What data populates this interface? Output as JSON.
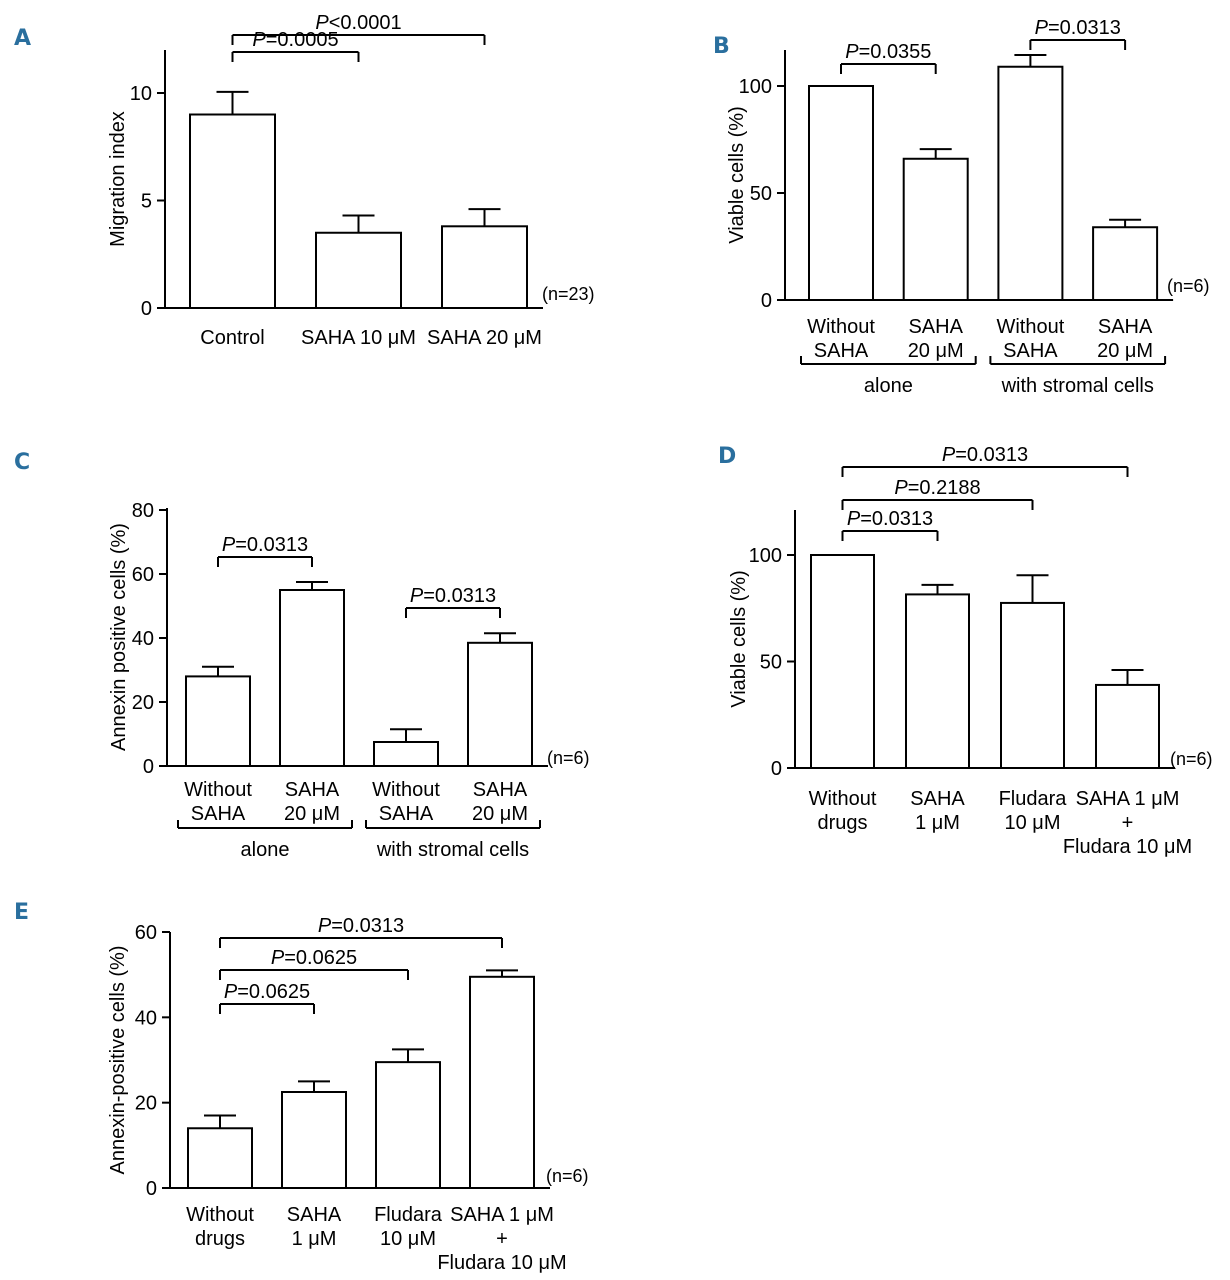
{
  "colors": {
    "panel_letter": "#2a6f9e",
    "ink": "#000000",
    "bar_fill": "#ffffff"
  },
  "chart_data": [
    {
      "id": "A",
      "type": "bar",
      "letter": "A",
      "ylabel": "Migration index",
      "ylim": [
        0,
        12
      ],
      "ticks": [
        0,
        5,
        10
      ],
      "categories": [
        [
          "Control"
        ],
        [
          "SAHA 10 μM"
        ],
        [
          "SAHA 20 μM"
        ]
      ],
      "values": [
        9.0,
        3.5,
        3.8
      ],
      "errors": [
        1.05,
        0.8,
        0.8
      ],
      "n_label": "(n=23)",
      "groups": [],
      "comparisons": [
        {
          "from": 0,
          "to": 1,
          "prefix": "P",
          "text": "=0.0005"
        },
        {
          "from": 0,
          "to": 2,
          "prefix": "P",
          "text": "<0.0001"
        }
      ]
    },
    {
      "id": "B",
      "type": "bar",
      "letter": "B",
      "ylabel": "Viable cells (%)",
      "ylim": [
        0,
        120
      ],
      "ticks": [
        0,
        50,
        100
      ],
      "categories": [
        [
          "Without",
          "SAHA"
        ],
        [
          "SAHA",
          "20 μM"
        ],
        [
          "Without",
          "SAHA"
        ],
        [
          "SAHA",
          "20 μM"
        ]
      ],
      "values": [
        100,
        66,
        109,
        34
      ],
      "errors": [
        0,
        4.5,
        5.5,
        3.5
      ],
      "n_label": "(n=6)",
      "groups": [
        {
          "from": 0,
          "to": 1,
          "label": "alone"
        },
        {
          "from": 2,
          "to": 3,
          "label": "with stromal cells"
        }
      ],
      "comparisons": [
        {
          "from": 0,
          "to": 1,
          "prefix": "P",
          "text": "=0.0355"
        },
        {
          "from": 2,
          "to": 3,
          "prefix": "P",
          "text": "=0.0313"
        }
      ]
    },
    {
      "id": "C",
      "type": "bar",
      "letter": "C",
      "ylabel": "Annexin positive cells (%)",
      "ylim": [
        0,
        80
      ],
      "ticks": [
        0,
        20,
        40,
        60,
        80
      ],
      "categories": [
        [
          "Without",
          "SAHA"
        ],
        [
          "SAHA",
          "20 μM"
        ],
        [
          "Without",
          "SAHA"
        ],
        [
          "SAHA",
          "20 μM"
        ]
      ],
      "values": [
        28,
        55,
        7.5,
        38.5
      ],
      "errors": [
        3,
        2.5,
        4,
        3
      ],
      "n_label": "(n=6)",
      "groups": [
        {
          "from": 0,
          "to": 1,
          "label": "alone"
        },
        {
          "from": 2,
          "to": 3,
          "label": "with stromal cells"
        }
      ],
      "comparisons": [
        {
          "from": 0,
          "to": 1,
          "prefix": "P",
          "text": "=0.0313"
        },
        {
          "from": 2,
          "to": 3,
          "prefix": "P",
          "text": "=0.0313"
        }
      ]
    },
    {
      "id": "D",
      "type": "bar",
      "letter": "D",
      "ylabel": "Viable cells (%)",
      "ylim": [
        0,
        120
      ],
      "ticks": [
        0,
        50,
        100
      ],
      "categories": [
        [
          "Without",
          "drugs"
        ],
        [
          "SAHA",
          "1 μM"
        ],
        [
          "Fludara",
          "10 μM"
        ],
        [
          "SAHA 1 μM",
          "+",
          "Fludara 10 μM"
        ]
      ],
      "values": [
        100,
        81.5,
        77.5,
        39
      ],
      "errors": [
        0,
        4.5,
        13,
        7
      ],
      "n_label": "(n=6)",
      "groups": [],
      "comparisons": [
        {
          "from": 0,
          "to": 1,
          "prefix": "P",
          "text": "=0.0313"
        },
        {
          "from": 0,
          "to": 2,
          "prefix": "P",
          "text": "=0.2188"
        },
        {
          "from": 0,
          "to": 3,
          "prefix": "P",
          "text": "=0.0313"
        }
      ]
    },
    {
      "id": "E",
      "type": "bar",
      "letter": "E",
      "ylabel": "Annexin-positive cells (%)",
      "ylim": [
        0,
        60
      ],
      "ticks": [
        0,
        20,
        40,
        60
      ],
      "categories": [
        [
          "Without",
          "drugs"
        ],
        [
          "SAHA",
          "1 μM"
        ],
        [
          "Fludara",
          "10 μM"
        ],
        [
          "SAHA 1 μM",
          "+",
          "Fludara 10 μM"
        ]
      ],
      "values": [
        14,
        22.5,
        29.5,
        49.5
      ],
      "errors": [
        3,
        2.5,
        3,
        1.5
      ],
      "n_label": "(n=6)",
      "groups": [],
      "comparisons": [
        {
          "from": 0,
          "to": 1,
          "prefix": "P",
          "text": "=0.0625"
        },
        {
          "from": 0,
          "to": 2,
          "prefix": "P",
          "text": "=0.0625"
        },
        {
          "from": 0,
          "to": 3,
          "prefix": "P",
          "text": "=0.0313"
        }
      ]
    }
  ]
}
